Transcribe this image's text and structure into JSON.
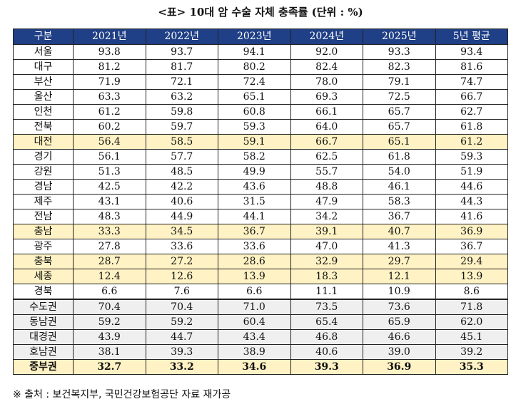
{
  "title": "<표> 10대 암 수술 자체 충족률 (단위 : %)",
  "table": {
    "header": [
      "구분",
      "2021년",
      "2022년",
      "2023년",
      "2024년",
      "2025년",
      "5년 평균"
    ],
    "rows": [
      [
        "서울",
        "93.8",
        "93.7",
        "94.1",
        "92.0",
        "93.3",
        "93.4"
      ],
      [
        "대구",
        "81.2",
        "81.7",
        "80.2",
        "82.4",
        "82.3",
        "81.6"
      ],
      [
        "부산",
        "71.9",
        "72.1",
        "72.4",
        "78.0",
        "79.1",
        "74.7"
      ],
      [
        "울산",
        "63.3",
        "63.2",
        "65.1",
        "69.3",
        "72.5",
        "66.7"
      ],
      [
        "인천",
        "61.2",
        "59.8",
        "60.8",
        "66.1",
        "65.7",
        "62.7"
      ],
      [
        "전북",
        "60.2",
        "59.7",
        "59.3",
        "64.0",
        "65.7",
        "61.8"
      ],
      [
        "대전",
        "56.4",
        "58.5",
        "59.1",
        "66.7",
        "65.1",
        "61.2"
      ],
      [
        "경기",
        "56.1",
        "57.7",
        "58.2",
        "62.5",
        "61.8",
        "59.3"
      ],
      [
        "강원",
        "51.3",
        "48.5",
        "49.9",
        "55.7",
        "54.0",
        "51.9"
      ],
      [
        "경남",
        "42.5",
        "42.2",
        "43.6",
        "48.8",
        "46.1",
        "44.6"
      ],
      [
        "제주",
        "43.1",
        "40.6",
        "31.5",
        "47.9",
        "58.3",
        "44.3"
      ],
      [
        "전남",
        "48.3",
        "44.9",
        "44.1",
        "34.2",
        "36.7",
        "41.6"
      ],
      [
        "충남",
        "33.3",
        "34.5",
        "36.7",
        "39.1",
        "40.7",
        "36.9"
      ],
      [
        "광주",
        "27.8",
        "33.6",
        "33.6",
        "47.0",
        "41.3",
        "36.7"
      ],
      [
        "충북",
        "28.7",
        "27.2",
        "28.6",
        "32.9",
        "29.7",
        "29.4"
      ],
      [
        "세종",
        "12.4",
        "12.6",
        "13.9",
        "18.3",
        "12.1",
        "13.9"
      ],
      [
        "경북",
        "6.6",
        "7.6",
        "6.6",
        "11.1",
        "10.9",
        "8.6"
      ],
      [
        "수도권",
        "70.4",
        "70.4",
        "71.0",
        "73.5",
        "73.6",
        "71.8"
      ],
      [
        "동남권",
        "59.2",
        "59.2",
        "60.4",
        "65.4",
        "65.9",
        "62.0"
      ],
      [
        "대경권",
        "43.9",
        "44.7",
        "43.4",
        "46.8",
        "46.6",
        "45.1"
      ],
      [
        "호남권",
        "38.1",
        "39.3",
        "38.9",
        "40.6",
        "39.0",
        "39.2"
      ],
      [
        "중부권",
        "32.7",
        "33.2",
        "34.6",
        "39.3",
        "36.9",
        "35.3"
      ]
    ]
  },
  "note": "※ 출처 : 보건복지부, 국민건강보험공단 자료 재가공"
}
